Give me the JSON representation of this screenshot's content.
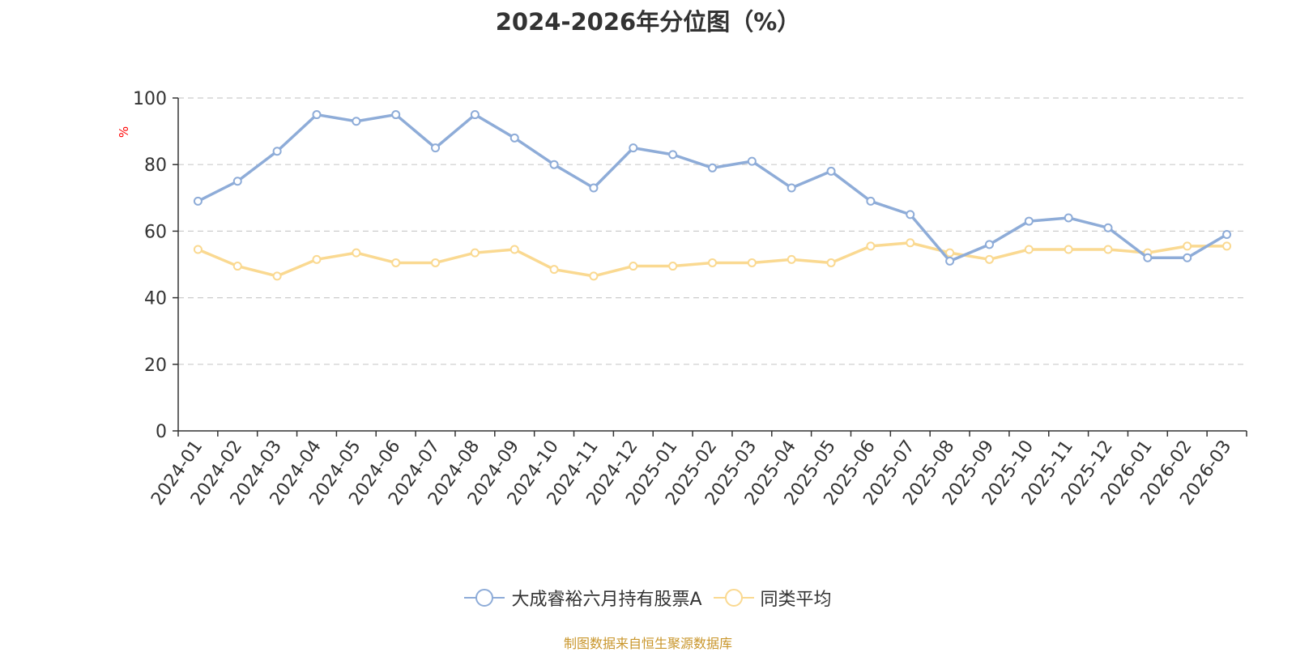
{
  "chart_data": {
    "type": "line",
    "title": "2024-2026年分位图（%）",
    "ylabel": "%",
    "xlabel": "",
    "ylim": [
      0,
      100
    ],
    "yticks": [
      0,
      20,
      40,
      60,
      80,
      100
    ],
    "grid": true,
    "legend_position": "bottom-center",
    "categories": [
      "2024-01",
      "2024-02",
      "2024-03",
      "2024-04",
      "2024-05",
      "2024-06",
      "2024-07",
      "2024-08",
      "2024-09",
      "2024-10",
      "2024-11",
      "2024-12",
      "2025-01",
      "2025-02",
      "2025-03",
      "2025-04",
      "2025-05",
      "2025-06",
      "2025-07",
      "2025-08",
      "2025-09",
      "2025-10",
      "2025-11",
      "2025-12",
      "2026-01",
      "2026-02",
      "2026-03"
    ],
    "series": [
      {
        "name": "大成睿裕六月持有股票A",
        "color": "#8eacd8",
        "values": [
          69,
          75,
          84,
          95,
          93,
          95,
          85,
          95,
          88,
          80,
          73,
          85,
          83,
          79,
          81,
          73,
          78,
          69,
          65,
          51,
          56,
          63,
          64,
          61,
          52,
          52,
          59
        ]
      },
      {
        "name": "同类平均",
        "color": "#fad991",
        "values": [
          54.5,
          49.5,
          46.5,
          51.5,
          53.5,
          50.5,
          50.5,
          53.5,
          54.5,
          48.5,
          46.5,
          49.5,
          49.5,
          50.5,
          50.5,
          51.5,
          50.5,
          55.5,
          56.5,
          53.5,
          51.5,
          54.5,
          54.5,
          54.5,
          53.5,
          55.5,
          55.5
        ]
      }
    ],
    "source_note": "制图数据来自恒生聚源数据库",
    "colors": {
      "axis": "#333333",
      "grid": "#cccccc",
      "ylabel": "#ff0000",
      "source": "#c9962c"
    }
  }
}
